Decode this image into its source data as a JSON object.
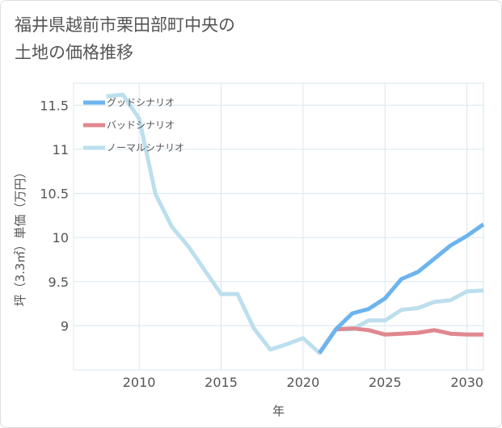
{
  "title": "福井県越前市栗田部町中央の\n土地の価格推移",
  "chart_data": {
    "type": "line",
    "xlabel": "年",
    "ylabel": "坪（3.3㎡）単価（万円）",
    "xlim": [
      2006,
      2031
    ],
    "ylim": [
      8.5,
      11.75
    ],
    "xticks": [
      2010,
      2015,
      2020,
      2025,
      2030
    ],
    "yticks": [
      9,
      9.5,
      10,
      10.5,
      11,
      11.5
    ],
    "ytick_labels": [
      "9",
      "9.5",
      "10",
      "10.5",
      "11",
      "11.5"
    ],
    "grid": true,
    "legend_position": "top-left",
    "series": [
      {
        "name": "グッドシナリオ",
        "color": "#6cb4ee",
        "points": [
          [
            2021,
            8.69
          ],
          [
            2022,
            8.96
          ],
          [
            2023,
            9.14
          ],
          [
            2024,
            9.19
          ],
          [
            2025,
            9.31
          ],
          [
            2026,
            9.53
          ],
          [
            2027,
            9.61
          ],
          [
            2028,
            9.76
          ],
          [
            2029,
            9.91
          ],
          [
            2030,
            10.02
          ],
          [
            2031,
            10.15
          ]
        ]
      },
      {
        "name": "バッドシナリオ",
        "color": "#e0888f",
        "points": [
          [
            2021,
            8.69
          ],
          [
            2022,
            8.96
          ],
          [
            2023,
            8.97
          ],
          [
            2024,
            8.95
          ],
          [
            2025,
            8.9
          ],
          [
            2026,
            8.91
          ],
          [
            2027,
            8.92
          ],
          [
            2028,
            8.95
          ],
          [
            2029,
            8.91
          ],
          [
            2030,
            8.9
          ],
          [
            2031,
            8.9
          ]
        ]
      },
      {
        "name": "ノーマルシナリオ",
        "color": "#bcdfee",
        "points": [
          [
            2008,
            11.6
          ],
          [
            2009,
            11.62
          ],
          [
            2010,
            11.35
          ],
          [
            2011,
            10.49
          ],
          [
            2012,
            10.12
          ],
          [
            2013,
            9.9
          ],
          [
            2014,
            9.63
          ],
          [
            2015,
            9.36
          ],
          [
            2016,
            9.36
          ],
          [
            2017,
            8.97
          ],
          [
            2018,
            8.73
          ],
          [
            2019,
            8.79
          ],
          [
            2020,
            8.86
          ],
          [
            2021,
            8.69
          ],
          [
            2022,
            8.96
          ],
          [
            2023,
            8.96
          ],
          [
            2024,
            9.06
          ],
          [
            2025,
            9.06
          ],
          [
            2026,
            9.18
          ],
          [
            2027,
            9.2
          ],
          [
            2028,
            9.27
          ],
          [
            2029,
            9.29
          ],
          [
            2030,
            9.39
          ],
          [
            2031,
            9.4
          ]
        ]
      }
    ]
  }
}
